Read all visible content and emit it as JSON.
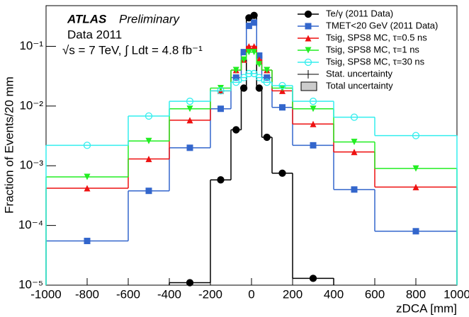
{
  "chart_data": {
    "type": "step-histogram",
    "title": "ATLAS",
    "subtitle": "Preliminary",
    "annotations": [
      "Data 2011",
      "√s = 7 TeV, ∫ Ldt = 4.8 fb⁻¹"
    ],
    "x_label": "zDCA [mm]",
    "y_label": "Fraction of Events/20 mm",
    "log_y": true,
    "bins": [
      -1000,
      -600,
      -400,
      -200,
      -100,
      -50,
      -25,
      0,
      25,
      50,
      100,
      200,
      400,
      600,
      1000
    ],
    "xlim": [
      -1000,
      1000
    ],
    "xticks": [
      -1000,
      -800,
      -600,
      -400,
      -200,
      0,
      200,
      400,
      600,
      800,
      1000
    ],
    "ylim": [
      1e-05,
      0.48
    ],
    "yticks": [
      {
        "value": 1e-05,
        "label": "10⁻⁵"
      },
      {
        "value": 0.0001,
        "label": "10⁻⁴"
      },
      {
        "value": 0.001,
        "label": "10⁻³"
      },
      {
        "value": 0.01,
        "label": "10⁻²"
      },
      {
        "value": 0.1,
        "label": "10⁻¹"
      }
    ],
    "legend_extra": [
      "Stat. uncertainty",
      "Total uncertainty"
    ],
    "series": [
      {
        "name": "Te/γ (2011 Data)",
        "color": "#000000",
        "marker": "circle",
        "values": [
          null,
          null,
          1.1e-05,
          0.00058,
          0.004,
          0.02,
          0.3,
          0.33,
          0.02,
          0.003,
          0.00075,
          1.3e-05,
          null,
          null
        ]
      },
      {
        "name": "TMET<20 GeV (2011 Data)",
        "color": "#3366cc",
        "marker": "square",
        "values": [
          5.5e-05,
          0.00038,
          0.002,
          0.009,
          0.03,
          0.08,
          0.22,
          0.25,
          0.07,
          0.03,
          0.0095,
          0.0022,
          0.0004,
          8e-05
        ]
      },
      {
        "name": "Tsig, SPS8 MC, τ=0.5 ns",
        "color": "#ee1111",
        "marker": "triangle",
        "values": [
          0.00042,
          0.0013,
          0.0058,
          0.018,
          0.04,
          0.06,
          0.1,
          0.1,
          0.06,
          0.04,
          0.018,
          0.005,
          0.0017,
          0.00044
        ]
      },
      {
        "name": "Tsig, SPS8 MC, τ=1 ns",
        "color": "#22ee22",
        "marker": "triangle-down",
        "values": [
          0.00065,
          0.0026,
          0.009,
          0.02,
          0.04,
          0.06,
          0.08,
          0.08,
          0.05,
          0.04,
          0.02,
          0.009,
          0.0025,
          0.0009
        ]
      },
      {
        "name": "Tsig, SPS8 MC, τ=30 ns",
        "color": "#33eeee",
        "marker": "open-circle",
        "values": [
          0.0022,
          0.0068,
          0.012,
          0.018,
          0.025,
          0.03,
          0.035,
          0.035,
          0.03,
          0.025,
          0.022,
          0.012,
          0.0065,
          0.0032
        ]
      }
    ]
  }
}
